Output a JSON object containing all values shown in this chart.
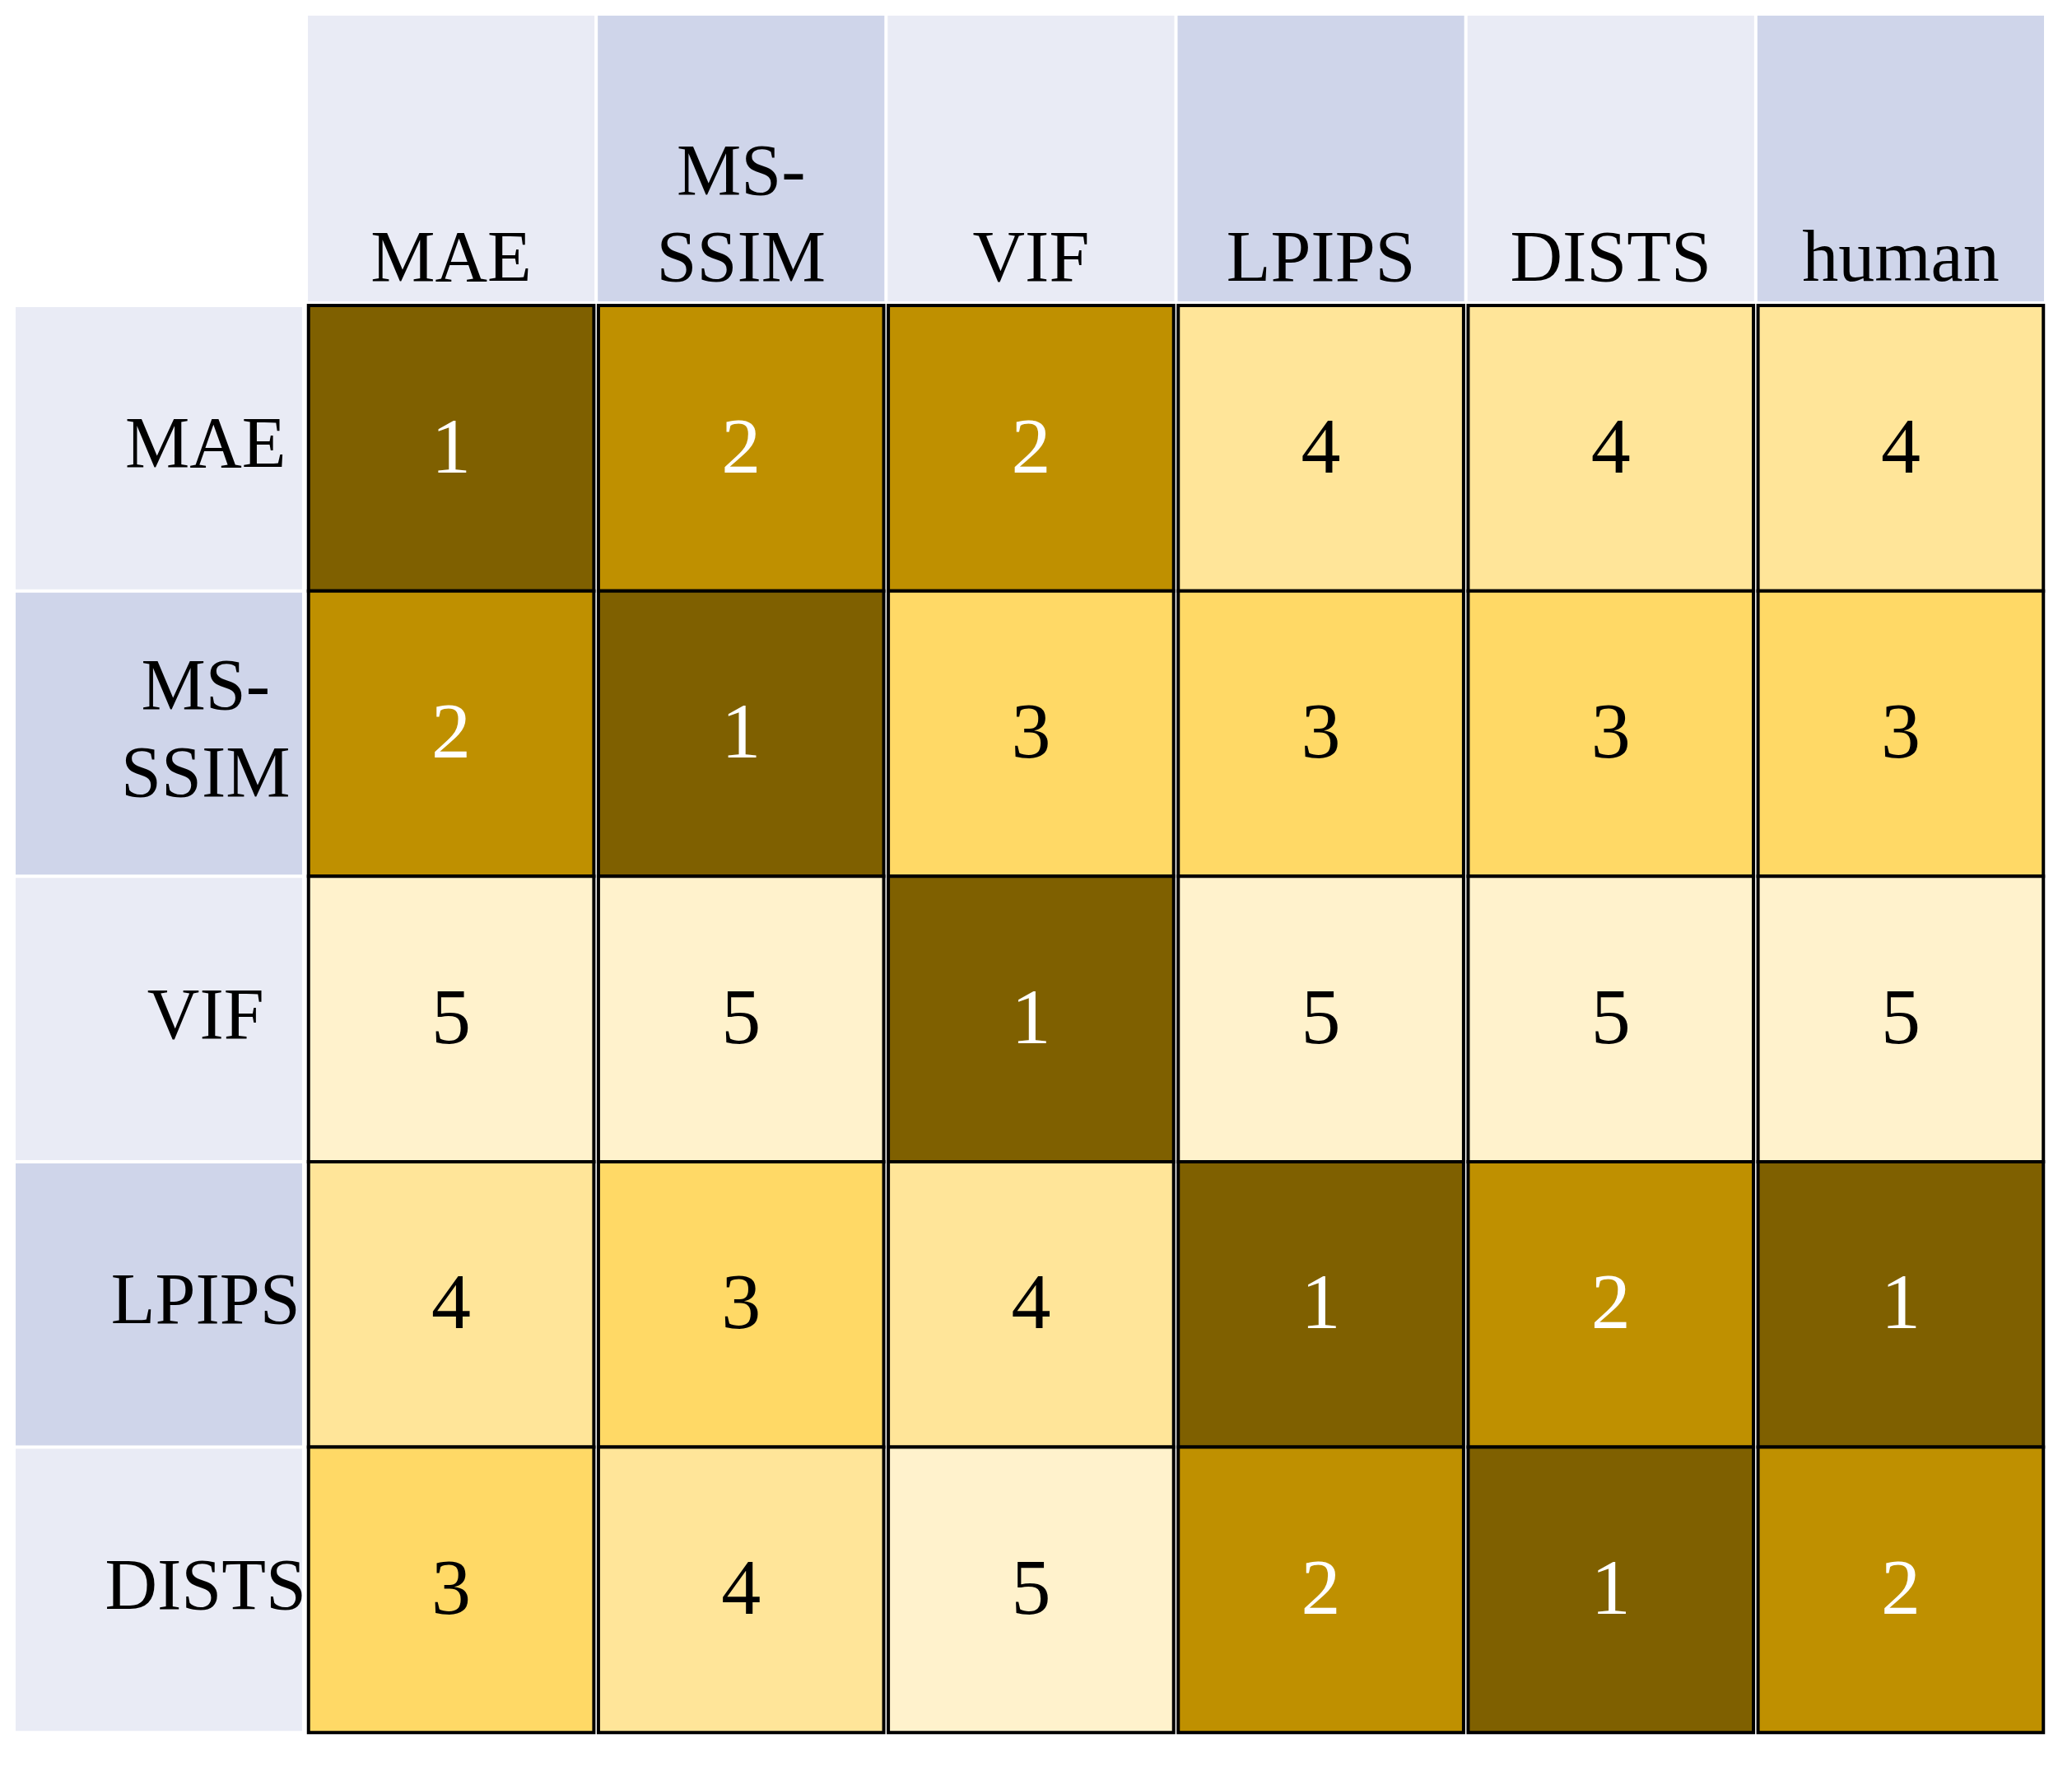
{
  "chart_data": {
    "type": "heatmap",
    "categories": [
      "MAE",
      "MS-SSIM",
      "VIF",
      "LPIPS",
      "DISTS",
      "human"
    ],
    "y_categories": [
      "MAE",
      "MS-SSIM",
      "VIF",
      "LPIPS",
      "DISTS"
    ],
    "cells": [
      [
        1,
        2,
        2,
        4,
        4,
        4
      ],
      [
        2,
        1,
        3,
        3,
        3,
        3
      ],
      [
        5,
        5,
        1,
        5,
        5,
        5
      ],
      [
        4,
        3,
        4,
        1,
        2,
        1
      ],
      [
        3,
        4,
        5,
        2,
        1,
        2
      ]
    ],
    "data_labels": true
  }
}
